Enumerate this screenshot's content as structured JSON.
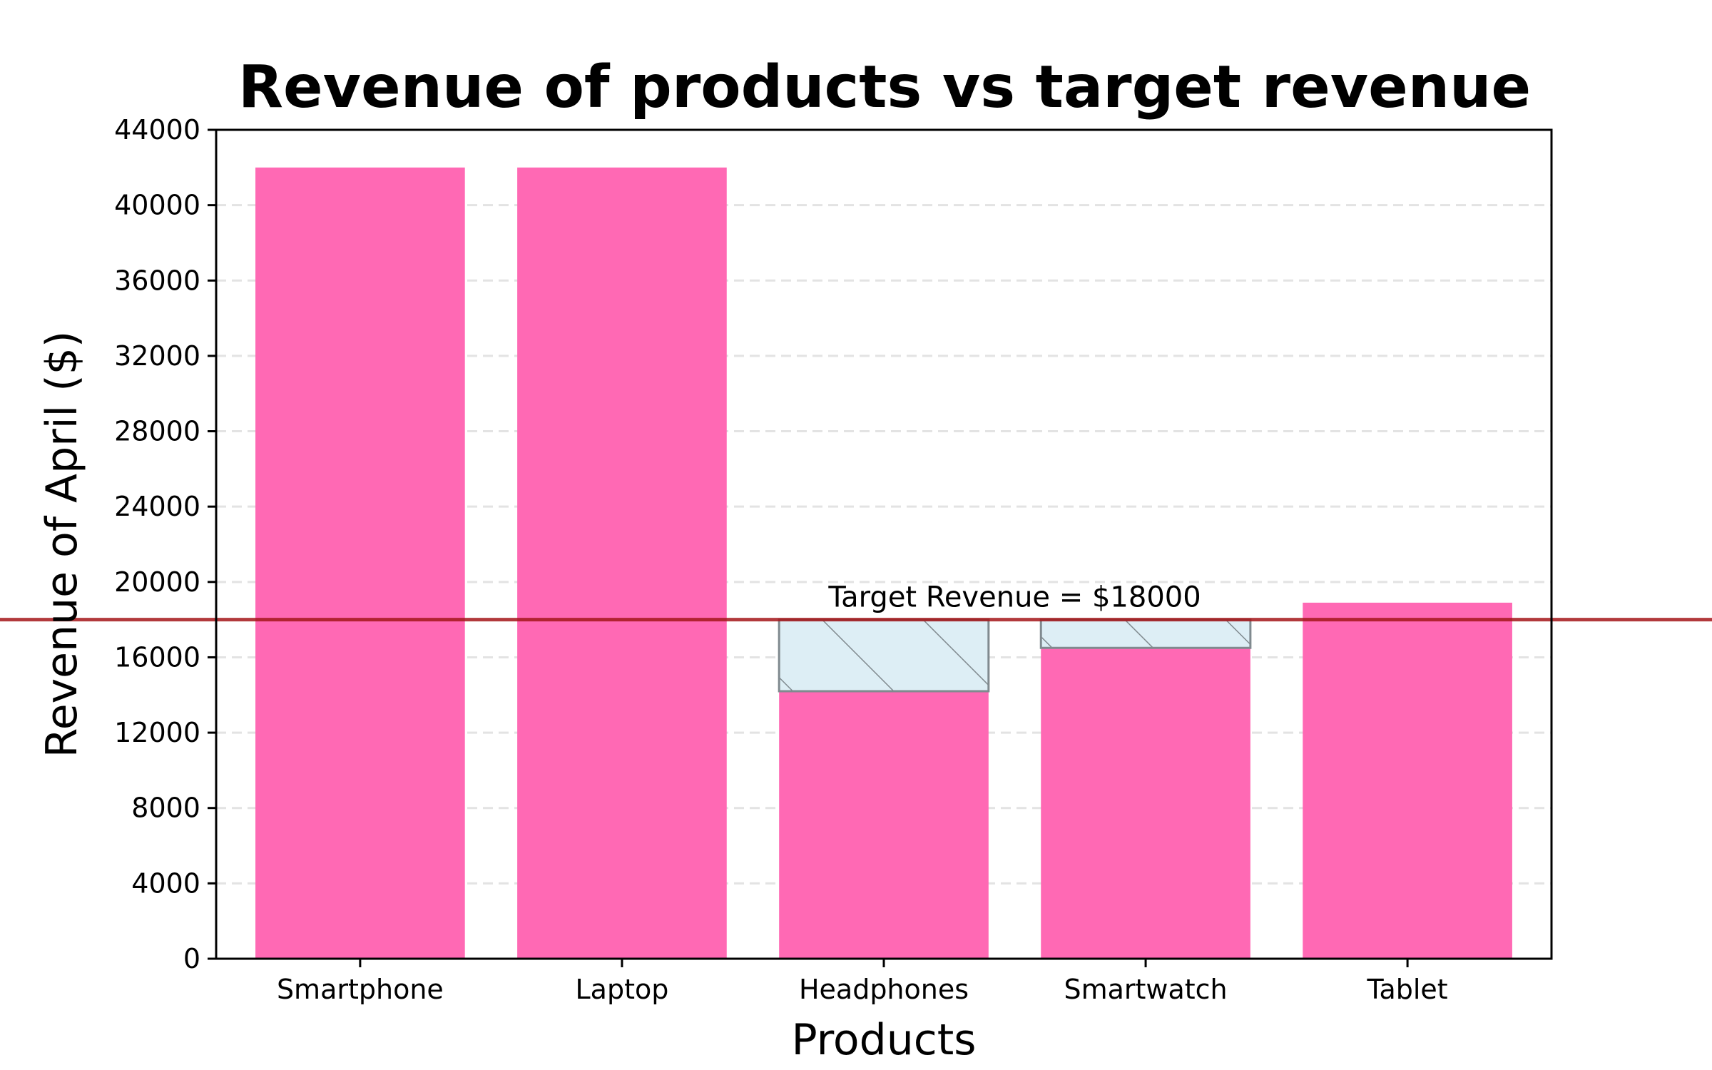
{
  "chart_data": {
    "type": "bar",
    "title": "Revenue of products vs target revenue",
    "xlabel": "Products",
    "ylabel": "Revenue of April ($)",
    "categories": [
      "Smartphone",
      "Laptop",
      "Headphones",
      "Smartwatch",
      "Tablet"
    ],
    "values": [
      42000,
      42000,
      14200,
      16500,
      18900
    ],
    "target": 18000,
    "target_label": "Target Revenue = $18000",
    "ylim": [
      0,
      44000
    ],
    "yticks": [
      0,
      4000,
      8000,
      12000,
      16000,
      20000,
      24000,
      28000,
      32000,
      36000,
      40000,
      44000
    ],
    "grid": "y-dashed",
    "colors": {
      "bar": "#ff69b4",
      "gap_fill": "#ddeef5",
      "gap_edge": "#808a8f",
      "target_line": "#a4161a",
      "grid": "#e3e3e3"
    }
  }
}
